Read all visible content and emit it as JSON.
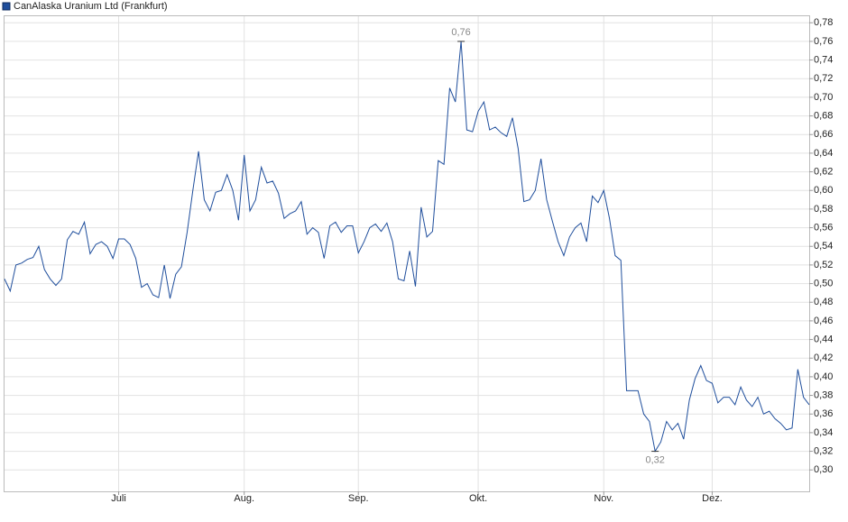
{
  "chart_data": {
    "type": "line",
    "title": "CanAlaska Uranium Ltd (Frankfurt)",
    "categories": [
      null,
      null,
      null,
      null,
      null,
      null,
      null,
      null,
      null,
      null,
      null,
      null,
      null,
      null,
      null,
      null,
      null,
      null,
      null,
      null,
      "Juli",
      null,
      null,
      null,
      null,
      null,
      null,
      null,
      null,
      null,
      null,
      null,
      null,
      null,
      null,
      null,
      null,
      null,
      null,
      null,
      null,
      null,
      "Aug.",
      null,
      null,
      null,
      null,
      null,
      null,
      null,
      null,
      null,
      null,
      null,
      null,
      null,
      null,
      null,
      null,
      null,
      null,
      null,
      "Sep.",
      null,
      null,
      null,
      null,
      null,
      null,
      null,
      null,
      null,
      null,
      null,
      null,
      null,
      null,
      null,
      null,
      null,
      null,
      null,
      null,
      "Okt.",
      null,
      null,
      null,
      null,
      null,
      null,
      null,
      null,
      null,
      null,
      null,
      null,
      null,
      null,
      null,
      null,
      null,
      null,
      null,
      null,
      null,
      "Nov.",
      null,
      null,
      null,
      null,
      null,
      null,
      null,
      null,
      null,
      null,
      null,
      null,
      null,
      null,
      null,
      null,
      null,
      null,
      "Dez.",
      null,
      null,
      null,
      null,
      null,
      null,
      null,
      null,
      null,
      null,
      null,
      null,
      null,
      null,
      null,
      null,
      null
    ],
    "series": [
      {
        "name": "CanAlaska Uranium Ltd (Frankfurt)",
        "color": "#1f4e9c",
        "values": [
          0.505,
          0.492,
          0.52,
          0.522,
          0.526,
          0.528,
          0.54,
          0.515,
          0.505,
          0.498,
          0.505,
          0.547,
          0.556,
          0.553,
          0.566,
          0.532,
          0.542,
          0.545,
          0.54,
          0.527,
          0.548,
          0.548,
          0.542,
          0.527,
          0.496,
          0.5,
          0.488,
          0.485,
          0.52,
          0.484,
          0.51,
          0.518,
          0.555,
          0.6,
          0.642,
          0.59,
          0.578,
          0.598,
          0.6,
          0.617,
          0.6,
          0.568,
          0.638,
          0.578,
          0.59,
          0.625,
          0.608,
          0.61,
          0.597,
          0.57,
          0.575,
          0.578,
          0.588,
          0.553,
          0.56,
          0.555,
          0.527,
          0.562,
          0.566,
          0.555,
          0.562,
          0.562,
          0.533,
          0.545,
          0.56,
          0.564,
          0.556,
          0.565,
          0.545,
          0.505,
          0.503,
          0.535,
          0.497,
          0.582,
          0.55,
          0.556,
          0.632,
          0.628,
          0.71,
          0.695,
          0.76,
          0.665,
          0.663,
          0.685,
          0.695,
          0.665,
          0.668,
          0.662,
          0.658,
          0.678,
          0.645,
          0.588,
          0.59,
          0.6,
          0.634,
          0.59,
          0.567,
          0.545,
          0.53,
          0.55,
          0.56,
          0.565,
          0.545,
          0.594,
          0.587,
          0.6,
          0.57,
          0.53,
          0.525,
          0.385,
          0.385,
          0.385,
          0.36,
          0.352,
          0.32,
          0.33,
          0.352,
          0.343,
          0.35,
          0.333,
          0.375,
          0.398,
          0.412,
          0.396,
          0.393,
          0.372,
          0.378,
          0.378,
          0.37,
          0.389,
          0.375,
          0.368,
          0.378,
          0.36,
          0.363,
          0.355,
          0.35,
          0.343,
          0.345,
          0.408,
          0.378,
          0.37
        ]
      }
    ],
    "ylim": [
      0.277,
      0.787
    ],
    "yticks": [
      {
        "value": 0.3,
        "label": "0,30"
      },
      {
        "value": 0.32,
        "label": "0,32"
      },
      {
        "value": 0.34,
        "label": "0,34"
      },
      {
        "value": 0.36,
        "label": "0,36"
      },
      {
        "value": 0.38,
        "label": "0,38"
      },
      {
        "value": 0.4,
        "label": "0,40"
      },
      {
        "value": 0.42,
        "label": "0,42"
      },
      {
        "value": 0.44,
        "label": "0,44"
      },
      {
        "value": 0.46,
        "label": "0,46"
      },
      {
        "value": 0.48,
        "label": "0,48"
      },
      {
        "value": 0.5,
        "label": "0,50"
      },
      {
        "value": 0.52,
        "label": "0,52"
      },
      {
        "value": 0.54,
        "label": "0,54"
      },
      {
        "value": 0.56,
        "label": "0,56"
      },
      {
        "value": 0.58,
        "label": "0,58"
      },
      {
        "value": 0.6,
        "label": "0,60"
      },
      {
        "value": 0.62,
        "label": "0,62"
      },
      {
        "value": 0.64,
        "label": "0,64"
      },
      {
        "value": 0.66,
        "label": "0,66"
      },
      {
        "value": 0.68,
        "label": "0,68"
      },
      {
        "value": 0.7,
        "label": "0,70"
      },
      {
        "value": 0.72,
        "label": "0,72"
      },
      {
        "value": 0.74,
        "label": "0,74"
      },
      {
        "value": 0.76,
        "label": "0,76"
      },
      {
        "value": 0.78,
        "label": "0,78"
      }
    ],
    "max_label": {
      "value": 0.76,
      "label": "0,76"
    },
    "min_label": {
      "value": 0.32,
      "label": "0,32"
    },
    "grid": true
  }
}
